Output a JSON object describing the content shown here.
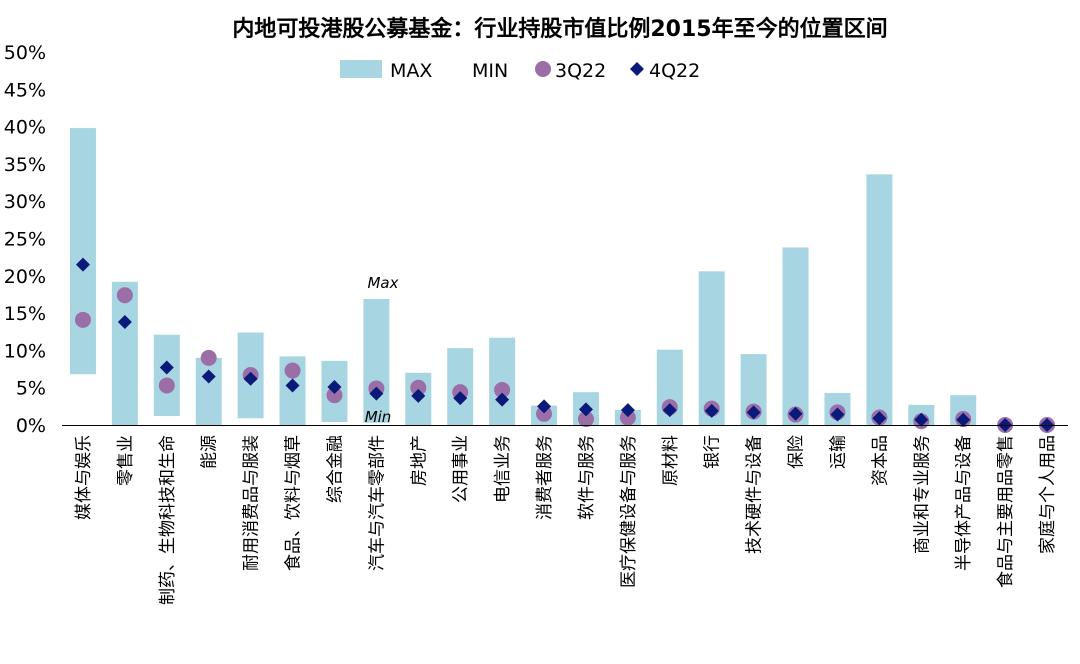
{
  "chart_data": {
    "type": "bar",
    "title": "内地可投港股公募基金：行业持股市值比例2015年至今的位置区间",
    "ylim": [
      0,
      50
    ],
    "yticks": [
      "0%",
      "5%",
      "10%",
      "15%",
      "20%",
      "25%",
      "30%",
      "35%",
      "40%",
      "45%",
      "50%"
    ],
    "legend": [
      "MAX",
      "MIN",
      "3Q22",
      "4Q22"
    ],
    "legend_position": "top",
    "grid": false,
    "annotations": {
      "max": "Max",
      "min": "Min"
    },
    "colors": {
      "range_bar": "#a8d5e2",
      "q3": "#9b6ea8",
      "q4": "#0a1a7a"
    },
    "categories": [
      "媒体与娱乐",
      "零售业",
      "制药、生物科技和生命",
      "能源",
      "耐用消费品与服装",
      "食品、饮料与烟草",
      "综合金融",
      "汽车与汽车零部件",
      "房地产",
      "公用事业",
      "电信业务",
      "消费者服务",
      "软件与服务",
      "医疗保健设备与服务",
      "原材料",
      "银行",
      "技术硬件与设备",
      "保险",
      "运输",
      "资本品",
      "商业和专业服务",
      "半导体产品与设备",
      "食品与主要用品零售",
      "家庭与个人用品"
    ],
    "series": [
      {
        "name": "MAX",
        "values": [
          39.8,
          19.2,
          12.1,
          9.0,
          12.4,
          9.2,
          8.6,
          16.9,
          7.0,
          10.3,
          11.7,
          2.6,
          4.4,
          2.0,
          10.1,
          20.6,
          9.5,
          23.8,
          4.3,
          33.6,
          2.7,
          4.0,
          0.0,
          0.0
        ]
      },
      {
        "name": "MIN",
        "values": [
          6.8,
          0.0,
          1.2,
          0.0,
          0.9,
          0.0,
          0.4,
          0.3,
          0.0,
          0.0,
          0.0,
          0.0,
          0.0,
          0.0,
          0.0,
          0.0,
          0.0,
          0.0,
          0.0,
          0.0,
          0.0,
          0.0,
          0.0,
          0.0
        ]
      },
      {
        "name": "3Q22",
        "values": [
          14.1,
          17.4,
          5.3,
          9.0,
          6.7,
          7.3,
          4.0,
          4.9,
          5.0,
          4.4,
          4.7,
          1.5,
          0.8,
          1.0,
          2.4,
          2.2,
          1.8,
          1.4,
          1.7,
          1.0,
          0.5,
          0.8,
          0.0,
          0.0
        ]
      },
      {
        "name": "4Q22",
        "values": [
          21.5,
          13.8,
          7.7,
          6.5,
          6.2,
          5.3,
          5.1,
          4.2,
          3.9,
          3.6,
          3.4,
          2.5,
          2.1,
          2.0,
          2.0,
          1.9,
          1.7,
          1.5,
          1.4,
          0.9,
          0.7,
          0.7,
          0.0,
          0.0
        ]
      }
    ]
  }
}
